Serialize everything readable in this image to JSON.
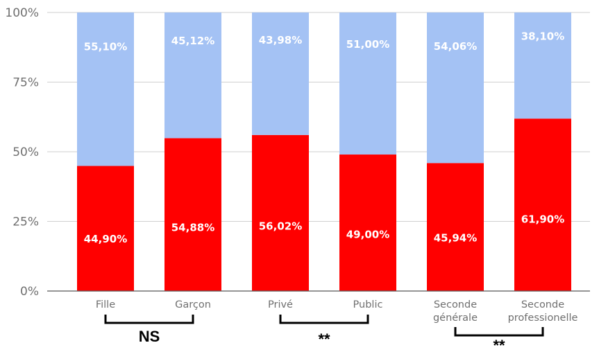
{
  "chart_data": {
    "type": "bar",
    "stacked": true,
    "categories": [
      [
        "Fille"
      ],
      [
        "Garçon"
      ],
      [
        "Privé"
      ],
      [
        "Public"
      ],
      [
        "Seconde",
        "générale"
      ],
      [
        "Seconde",
        "professionelle"
      ]
    ],
    "series": [
      {
        "color": "#ff0000",
        "values": [
          44.9,
          54.88,
          56.02,
          49.0,
          45.94,
          61.9
        ],
        "labels": [
          "44,90%",
          "54,88%",
          "56,02%",
          "49,00%",
          "45,94%",
          "61,90%"
        ]
      },
      {
        "color": "#a4c2f4",
        "values": [
          55.1,
          45.12,
          43.98,
          51.0,
          54.06,
          38.1
        ],
        "labels": [
          "55,10%",
          "45,12%",
          "43,98%",
          "51,00%",
          "54,06%",
          "38,10%"
        ]
      }
    ],
    "ylim": [
      0,
      100
    ],
    "yticks": [
      {
        "value": 0,
        "label": "0%"
      },
      {
        "value": 25,
        "label": "25%"
      },
      {
        "value": 50,
        "label": "50%"
      },
      {
        "value": 75,
        "label": "75%"
      },
      {
        "value": 100,
        "label": "100%"
      }
    ],
    "grid": true,
    "significance": [
      {
        "from": 0,
        "to": 1,
        "label": "NS"
      },
      {
        "from": 2,
        "to": 3,
        "label": "**"
      },
      {
        "from": 4,
        "to": 5,
        "label": "**"
      }
    ]
  },
  "colors": {
    "grid": "#cfcfcf",
    "axis": "#555555"
  }
}
